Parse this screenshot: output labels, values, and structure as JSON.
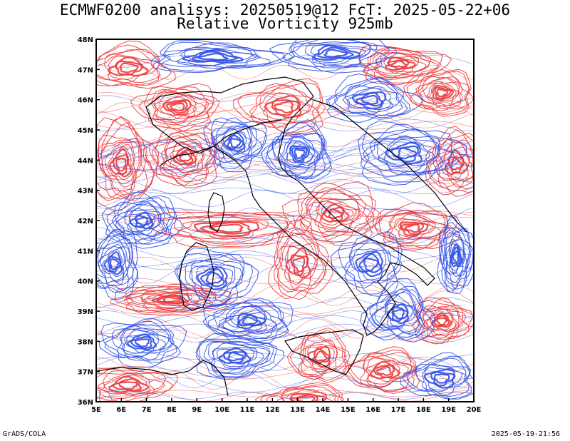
{
  "title_line1": "ECMWF0200 analisys: 20250519@12 FcT: 2025-05-22+06",
  "title_line2": "Relative Vorticity 925mb",
  "footer_left": "GrADS/COLA",
  "footer_right": "2025-05-19-21:56",
  "colors": {
    "positive_vorticity": "#ee3a3a",
    "negative_vorticity": "#2f4fe6",
    "coastline": "#000000",
    "frame": "#000000"
  },
  "map": {
    "lon_range": [
      5,
      20
    ],
    "lat_range": [
      36,
      48
    ],
    "lon_ticks": [
      "5E",
      "6E",
      "7E",
      "8E",
      "9E",
      "10E",
      "11E",
      "12E",
      "13E",
      "14E",
      "15E",
      "16E",
      "17E",
      "18E",
      "19E",
      "20E"
    ],
    "lat_ticks": [
      "36N",
      "37N",
      "38N",
      "39N",
      "40N",
      "41N",
      "42N",
      "43N",
      "44N",
      "45N",
      "46N",
      "47N",
      "48N"
    ]
  }
}
